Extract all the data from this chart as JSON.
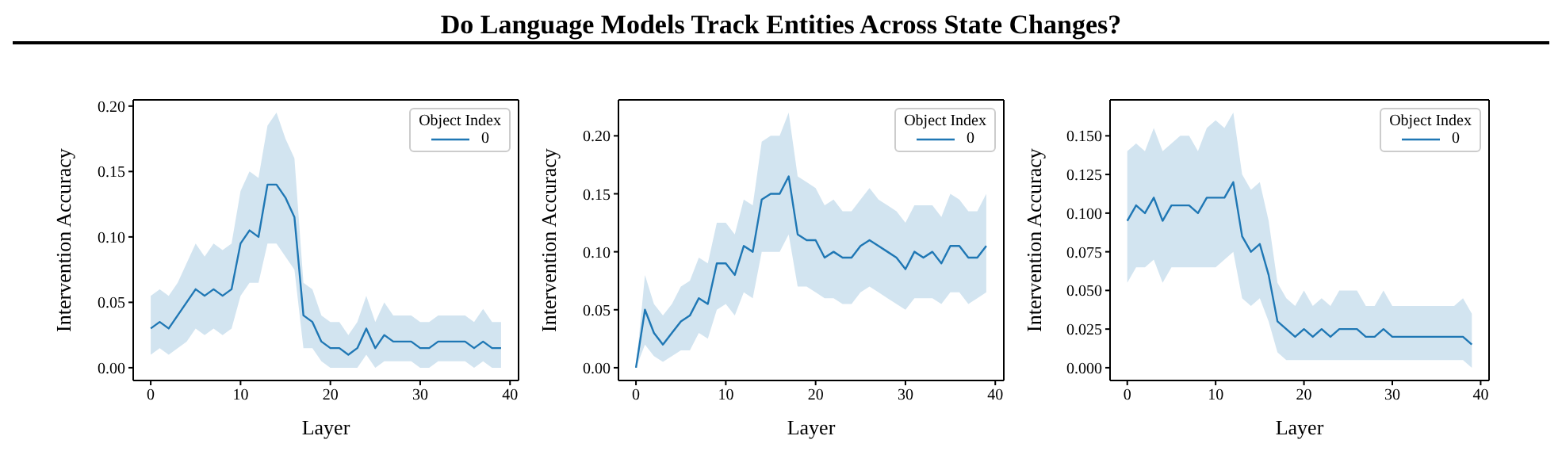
{
  "chart_data": [
    {
      "type": "line",
      "title": "Do Language Models Track Entities Across State Changes?",
      "xlabel": "Layer",
      "ylabel": "Intervention Accuracy",
      "legend_title": "Object Index",
      "legend": "top right",
      "grid": false,
      "x": [
        0,
        1,
        2,
        3,
        4,
        5,
        6,
        7,
        8,
        9,
        10,
        11,
        12,
        13,
        14,
        15,
        16,
        17,
        18,
        19,
        20,
        21,
        22,
        23,
        24,
        25,
        26,
        27,
        28,
        29,
        30,
        31,
        32,
        33,
        34,
        35,
        36,
        37,
        38,
        39
      ],
      "xlim": [
        -1.95,
        40.95
      ],
      "xticks": [
        0,
        10,
        20,
        30,
        40
      ],
      "ylim": [
        -0.00975,
        0.20475
      ],
      "yticks": [
        {
          "value": 0,
          "label": "0.00"
        },
        {
          "value": 0.05,
          "label": "0.05"
        },
        {
          "value": 0.1,
          "label": "0.10"
        },
        {
          "value": 0.15,
          "label": "0.15"
        },
        {
          "value": 0.2,
          "label": "0.20"
        }
      ],
      "series": [
        {
          "name": "0",
          "color": "#1f77b4",
          "values": [
            0.03,
            0.035,
            0.03,
            0.04,
            0.05,
            0.06,
            0.055,
            0.06,
            0.055,
            0.06,
            0.095,
            0.105,
            0.1,
            0.14,
            0.14,
            0.13,
            0.115,
            0.04,
            0.035,
            0.02,
            0.015,
            0.015,
            0.01,
            0.015,
            0.03,
            0.015,
            0.025,
            0.02,
            0.02,
            0.02,
            0.015,
            0.015,
            0.02,
            0.02,
            0.02,
            0.02,
            0.015,
            0.02,
            0.015,
            0.015
          ],
          "lower": [
            0.01,
            0.015,
            0.01,
            0.015,
            0.02,
            0.03,
            0.025,
            0.03,
            0.025,
            0.03,
            0.055,
            0.065,
            0.065,
            0.095,
            0.095,
            0.085,
            0.075,
            0.015,
            0.015,
            0.005,
            0,
            0,
            0,
            0,
            0.01,
            0,
            0.005,
            0.005,
            0.005,
            0.005,
            0,
            0,
            0.005,
            0.005,
            0.005,
            0.005,
            0,
            0.005,
            0,
            0
          ],
          "upper": [
            0.055,
            0.06,
            0.055,
            0.065,
            0.08,
            0.095,
            0.085,
            0.095,
            0.09,
            0.095,
            0.135,
            0.15,
            0.145,
            0.185,
            0.195,
            0.175,
            0.16,
            0.065,
            0.06,
            0.04,
            0.035,
            0.035,
            0.025,
            0.035,
            0.055,
            0.035,
            0.05,
            0.04,
            0.04,
            0.04,
            0.035,
            0.035,
            0.04,
            0.04,
            0.04,
            0.04,
            0.035,
            0.045,
            0.035,
            0.035
          ]
        }
      ]
    },
    {
      "type": "line",
      "xlabel": "Layer",
      "ylabel": "Intervention Accuracy",
      "legend_title": "Object Index",
      "legend": "top right",
      "grid": false,
      "x": [
        0,
        1,
        2,
        3,
        4,
        5,
        6,
        7,
        8,
        9,
        10,
        11,
        12,
        13,
        14,
        15,
        16,
        17,
        18,
        19,
        20,
        21,
        22,
        23,
        24,
        25,
        26,
        27,
        28,
        29,
        30,
        31,
        32,
        33,
        34,
        35,
        36,
        37,
        38,
        39
      ],
      "xlim": [
        -1.95,
        40.95
      ],
      "xticks": [
        0,
        10,
        20,
        30,
        40
      ],
      "ylim": [
        -0.011,
        0.231
      ],
      "yticks": [
        {
          "value": 0,
          "label": "0.00"
        },
        {
          "value": 0.05,
          "label": "0.05"
        },
        {
          "value": 0.1,
          "label": "0.10"
        },
        {
          "value": 0.15,
          "label": "0.15"
        },
        {
          "value": 0.2,
          "label": "0.20"
        }
      ],
      "series": [
        {
          "name": "0",
          "color": "#1f77b4",
          "values": [
            0,
            0.05,
            0.03,
            0.02,
            0.03,
            0.04,
            0.045,
            0.06,
            0.055,
            0.09,
            0.09,
            0.08,
            0.105,
            0.1,
            0.145,
            0.15,
            0.15,
            0.165,
            0.115,
            0.11,
            0.11,
            0.095,
            0.1,
            0.095,
            0.095,
            0.105,
            0.11,
            0.105,
            0.1,
            0.095,
            0.085,
            0.1,
            0.095,
            0.1,
            0.09,
            0.105,
            0.105,
            0.095,
            0.095,
            0.105
          ],
          "lower": [
            0,
            0.02,
            0.01,
            0.005,
            0.01,
            0.015,
            0.015,
            0.03,
            0.025,
            0.05,
            0.055,
            0.045,
            0.065,
            0.06,
            0.1,
            0.1,
            0.1,
            0.115,
            0.07,
            0.07,
            0.065,
            0.06,
            0.06,
            0.055,
            0.055,
            0.065,
            0.07,
            0.065,
            0.06,
            0.055,
            0.05,
            0.06,
            0.06,
            0.06,
            0.055,
            0.065,
            0.065,
            0.055,
            0.06,
            0.065
          ],
          "upper": [
            0,
            0.08,
            0.055,
            0.045,
            0.055,
            0.07,
            0.075,
            0.095,
            0.09,
            0.125,
            0.125,
            0.115,
            0.145,
            0.14,
            0.195,
            0.2,
            0.2,
            0.22,
            0.165,
            0.16,
            0.155,
            0.14,
            0.145,
            0.135,
            0.135,
            0.145,
            0.155,
            0.145,
            0.14,
            0.135,
            0.125,
            0.14,
            0.14,
            0.14,
            0.13,
            0.15,
            0.145,
            0.135,
            0.135,
            0.15
          ]
        }
      ]
    },
    {
      "type": "line",
      "xlabel": "Layer",
      "ylabel": "Intervention Accuracy",
      "legend_title": "Object Index",
      "legend": "top right",
      "grid": false,
      "x": [
        0,
        1,
        2,
        3,
        4,
        5,
        6,
        7,
        8,
        9,
        10,
        11,
        12,
        13,
        14,
        15,
        16,
        17,
        18,
        19,
        20,
        21,
        22,
        23,
        24,
        25,
        26,
        27,
        28,
        29,
        30,
        31,
        32,
        33,
        34,
        35,
        36,
        37,
        38,
        39
      ],
      "xlim": [
        -1.95,
        40.95
      ],
      "xticks": [
        0,
        10,
        20,
        30,
        40
      ],
      "ylim": [
        -0.00825,
        0.17325
      ],
      "yticks": [
        {
          "value": 0,
          "label": "0.000"
        },
        {
          "value": 0.025,
          "label": "0.025"
        },
        {
          "value": 0.05,
          "label": "0.050"
        },
        {
          "value": 0.075,
          "label": "0.075"
        },
        {
          "value": 0.1,
          "label": "0.100"
        },
        {
          "value": 0.125,
          "label": "0.125"
        },
        {
          "value": 0.15,
          "label": "0.150"
        }
      ],
      "series": [
        {
          "name": "0",
          "color": "#1f77b4",
          "values": [
            0.095,
            0.105,
            0.1,
            0.11,
            0.095,
            0.105,
            0.105,
            0.105,
            0.1,
            0.11,
            0.11,
            0.11,
            0.12,
            0.085,
            0.075,
            0.08,
            0.06,
            0.03,
            0.025,
            0.02,
            0.025,
            0.02,
            0.025,
            0.02,
            0.025,
            0.025,
            0.025,
            0.02,
            0.02,
            0.025,
            0.02,
            0.02,
            0.02,
            0.02,
            0.02,
            0.02,
            0.02,
            0.02,
            0.02,
            0.015
          ],
          "lower": [
            0.055,
            0.065,
            0.065,
            0.07,
            0.055,
            0.065,
            0.065,
            0.065,
            0.065,
            0.065,
            0.065,
            0.07,
            0.075,
            0.045,
            0.04,
            0.045,
            0.03,
            0.01,
            0.005,
            0.005,
            0.005,
            0.005,
            0.005,
            0.005,
            0.005,
            0.005,
            0.005,
            0.005,
            0.005,
            0.005,
            0.005,
            0.005,
            0.005,
            0.005,
            0.005,
            0.005,
            0.005,
            0.005,
            0.005,
            0
          ],
          "upper": [
            0.14,
            0.145,
            0.14,
            0.155,
            0.14,
            0.145,
            0.15,
            0.15,
            0.14,
            0.155,
            0.16,
            0.155,
            0.165,
            0.125,
            0.115,
            0.12,
            0.095,
            0.055,
            0.045,
            0.04,
            0.05,
            0.04,
            0.045,
            0.04,
            0.05,
            0.05,
            0.05,
            0.04,
            0.04,
            0.05,
            0.04,
            0.04,
            0.04,
            0.04,
            0.04,
            0.04,
            0.04,
            0.04,
            0.045,
            0.035
          ]
        }
      ]
    }
  ]
}
